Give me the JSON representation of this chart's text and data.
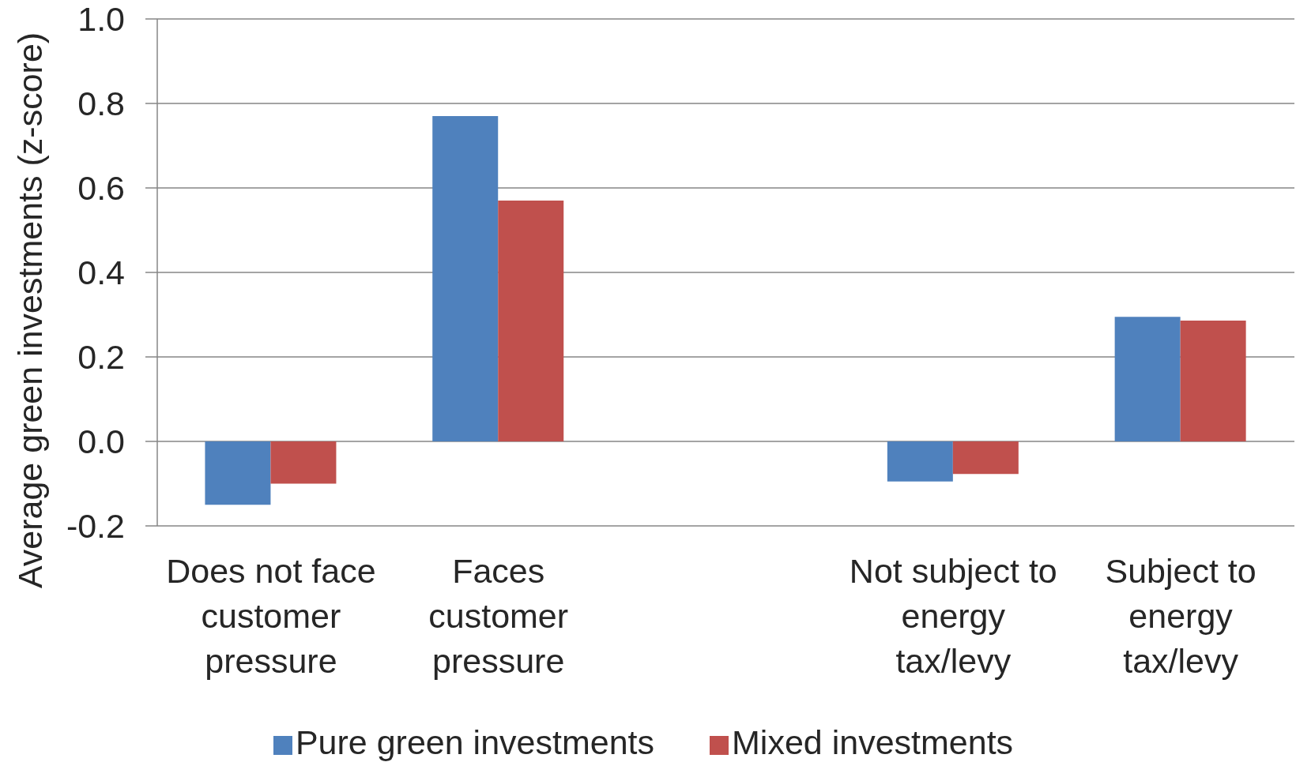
{
  "chart_data": {
    "type": "bar",
    "ylabel": "Average green investments (z-score)",
    "categories": [
      "Does not face customer pressure",
      "Faces customer pressure",
      null,
      "Not subject to energy tax/levy",
      "Subject to energy tax/levy"
    ],
    "series": [
      {
        "name": "Pure green investments",
        "color": "#4f81bd",
        "values": [
          -0.15,
          0.77,
          null,
          -0.095,
          0.295
        ]
      },
      {
        "name": "Mixed investments",
        "color": "#c0504d",
        "values": [
          -0.1,
          0.57,
          null,
          -0.077,
          0.286
        ]
      }
    ],
    "ylim": [
      -0.2,
      1.0
    ],
    "yticks": [
      -0.2,
      {
        "value": 0,
        "label": "0.0"
      },
      0.2,
      0.4,
      0.6,
      0.8,
      {
        "value": 1,
        "label": "1.0"
      }
    ],
    "grid": "y",
    "legend": "bottom"
  }
}
